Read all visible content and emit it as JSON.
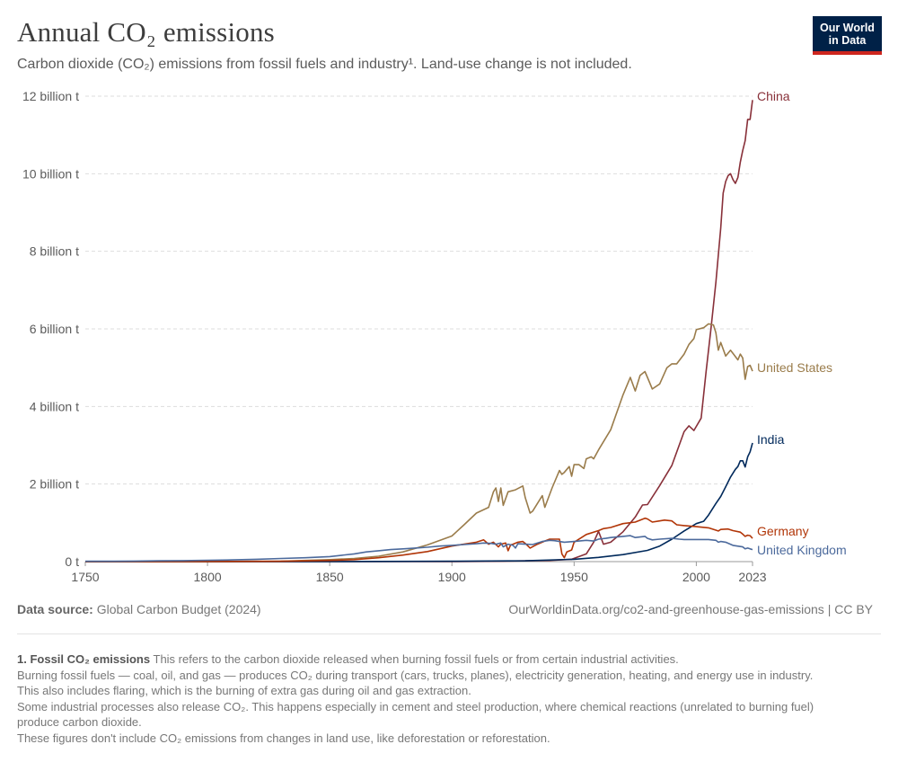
{
  "header": {
    "title": "Annual CO₂ emissions",
    "subtitle": "Carbon dioxide (CO₂) emissions from fossil fuels and industry¹. Land-use change is not included."
  },
  "logo": {
    "line1": "Our World",
    "line2": "in Data",
    "bg_color": "#002147",
    "accent_color": "#ce261e"
  },
  "footer": {
    "source_label": "Data source:",
    "source_value": "Global Carbon Budget (2024)",
    "url": "OurWorldinData.org/co2-and-greenhouse-gas-emissions | CC BY"
  },
  "footnote": {
    "heading": "1. Fossil CO₂ emissions",
    "line1": "This refers to the carbon dioxide released when burning fossil fuels or from certain industrial activities.",
    "line2": "Burning fossil fuels — coal, oil, and gas — produces CO₂ during transport (cars, trucks, planes), electricity generation, heating, and energy use in industry. This also includes flaring, which is the burning of extra gas during oil and gas extraction.",
    "line3": "Some industrial processes also release CO₂. This happens especially in cement and steel production, where chemical reactions (unrelated to burning fuel) produce carbon dioxide.",
    "line4": "These figures don't include CO₂ emissions from changes in land use, like deforestation or reforestation."
  },
  "chart_data": {
    "type": "line",
    "title": "Annual CO₂ emissions",
    "xlabel": "",
    "ylabel": "",
    "xlim": [
      1750,
      2023
    ],
    "ylim": [
      0,
      12
    ],
    "grid": "horizontal dashed",
    "legend": "inline labels at line ends (right)",
    "x_ticks": [
      "1750",
      "1800",
      "1850",
      "1900",
      "1950",
      "2000",
      "2023"
    ],
    "y_ticks": [
      {
        "value": 0,
        "label": "0 t"
      },
      {
        "value": 2,
        "label": "2 billion t"
      },
      {
        "value": 4,
        "label": "4 billion t"
      },
      {
        "value": 6,
        "label": "6 billion t"
      },
      {
        "value": 8,
        "label": "8 billion t"
      },
      {
        "value": 10,
        "label": "10 billion t"
      },
      {
        "value": 12,
        "label": "12 billion t"
      }
    ],
    "series": [
      {
        "name": "China",
        "color": "#883039",
        "points": [
          [
            1750,
            0
          ],
          [
            1900,
            0
          ],
          [
            1920,
            0.01
          ],
          [
            1940,
            0.03
          ],
          [
            1949,
            0.06
          ],
          [
            1955,
            0.2
          ],
          [
            1958,
            0.5
          ],
          [
            1960,
            0.78
          ],
          [
            1962,
            0.45
          ],
          [
            1965,
            0.5
          ],
          [
            1970,
            0.77
          ],
          [
            1975,
            1.15
          ],
          [
            1978,
            1.46
          ],
          [
            1980,
            1.47
          ],
          [
            1985,
            1.96
          ],
          [
            1990,
            2.48
          ],
          [
            1995,
            3.35
          ],
          [
            1997,
            3.5
          ],
          [
            1999,
            3.38
          ],
          [
            2002,
            3.7
          ],
          [
            2004,
            4.9
          ],
          [
            2006,
            6.0
          ],
          [
            2008,
            7.2
          ],
          [
            2010,
            8.6
          ],
          [
            2011,
            9.5
          ],
          [
            2012,
            9.8
          ],
          [
            2013,
            9.95
          ],
          [
            2014,
            10.0
          ],
          [
            2015,
            9.85
          ],
          [
            2016,
            9.75
          ],
          [
            2017,
            9.9
          ],
          [
            2018,
            10.3
          ],
          [
            2019,
            10.6
          ],
          [
            2020,
            10.85
          ],
          [
            2021,
            11.4
          ],
          [
            2022,
            11.4
          ],
          [
            2023,
            11.9
          ]
        ]
      },
      {
        "name": "United States",
        "color": "#9a7c4b",
        "points": [
          [
            1750,
            0
          ],
          [
            1800,
            0.002
          ],
          [
            1830,
            0.01
          ],
          [
            1850,
            0.05
          ],
          [
            1860,
            0.08
          ],
          [
            1870,
            0.14
          ],
          [
            1880,
            0.25
          ],
          [
            1890,
            0.43
          ],
          [
            1900,
            0.66
          ],
          [
            1905,
            0.95
          ],
          [
            1910,
            1.25
          ],
          [
            1915,
            1.4
          ],
          [
            1917,
            1.8
          ],
          [
            1918,
            1.9
          ],
          [
            1919,
            1.55
          ],
          [
            1920,
            1.9
          ],
          [
            1921,
            1.45
          ],
          [
            1923,
            1.8
          ],
          [
            1926,
            1.85
          ],
          [
            1929,
            1.95
          ],
          [
            1930,
            1.65
          ],
          [
            1932,
            1.25
          ],
          [
            1933,
            1.3
          ],
          [
            1937,
            1.7
          ],
          [
            1938,
            1.4
          ],
          [
            1941,
            1.9
          ],
          [
            1944,
            2.35
          ],
          [
            1945,
            2.25
          ],
          [
            1946,
            2.3
          ],
          [
            1948,
            2.45
          ],
          [
            1949,
            2.2
          ],
          [
            1950,
            2.5
          ],
          [
            1952,
            2.5
          ],
          [
            1954,
            2.4
          ],
          [
            1955,
            2.65
          ],
          [
            1957,
            2.7
          ],
          [
            1958,
            2.65
          ],
          [
            1960,
            2.88
          ],
          [
            1965,
            3.4
          ],
          [
            1970,
            4.3
          ],
          [
            1972,
            4.6
          ],
          [
            1973,
            4.75
          ],
          [
            1975,
            4.4
          ],
          [
            1977,
            4.8
          ],
          [
            1979,
            4.9
          ],
          [
            1980,
            4.75
          ],
          [
            1982,
            4.45
          ],
          [
            1985,
            4.58
          ],
          [
            1988,
            5.0
          ],
          [
            1990,
            5.1
          ],
          [
            1992,
            5.1
          ],
          [
            1995,
            5.35
          ],
          [
            1997,
            5.6
          ],
          [
            1999,
            5.75
          ],
          [
            2000,
            5.98
          ],
          [
            2003,
            6.03
          ],
          [
            2005,
            6.13
          ],
          [
            2007,
            6.1
          ],
          [
            2008,
            5.9
          ],
          [
            2009,
            5.45
          ],
          [
            2010,
            5.65
          ],
          [
            2012,
            5.3
          ],
          [
            2014,
            5.45
          ],
          [
            2015,
            5.37
          ],
          [
            2017,
            5.2
          ],
          [
            2018,
            5.35
          ],
          [
            2019,
            5.25
          ],
          [
            2020,
            4.7
          ],
          [
            2021,
            5.03
          ],
          [
            2022,
            5.06
          ],
          [
            2023,
            4.91
          ]
        ]
      },
      {
        "name": "India",
        "color": "#00295b",
        "points": [
          [
            1750,
            0
          ],
          [
            1850,
            0
          ],
          [
            1900,
            0.01
          ],
          [
            1930,
            0.02
          ],
          [
            1950,
            0.06
          ],
          [
            1960,
            0.11
          ],
          [
            1970,
            0.18
          ],
          [
            1980,
            0.29
          ],
          [
            1985,
            0.4
          ],
          [
            1990,
            0.58
          ],
          [
            1995,
            0.79
          ],
          [
            2000,
            0.98
          ],
          [
            2003,
            1.04
          ],
          [
            2005,
            1.2
          ],
          [
            2008,
            1.5
          ],
          [
            2010,
            1.68
          ],
          [
            2012,
            1.93
          ],
          [
            2014,
            2.18
          ],
          [
            2016,
            2.38
          ],
          [
            2017,
            2.45
          ],
          [
            2018,
            2.6
          ],
          [
            2019,
            2.6
          ],
          [
            2020,
            2.44
          ],
          [
            2021,
            2.7
          ],
          [
            2022,
            2.83
          ],
          [
            2023,
            3.06
          ]
        ]
      },
      {
        "name": "Germany",
        "color": "#b13507",
        "points": [
          [
            1750,
            0
          ],
          [
            1800,
            0.002
          ],
          [
            1830,
            0.01
          ],
          [
            1850,
            0.03
          ],
          [
            1860,
            0.05
          ],
          [
            1870,
            0.1
          ],
          [
            1880,
            0.17
          ],
          [
            1890,
            0.26
          ],
          [
            1900,
            0.4
          ],
          [
            1905,
            0.45
          ],
          [
            1910,
            0.5
          ],
          [
            1913,
            0.56
          ],
          [
            1915,
            0.45
          ],
          [
            1917,
            0.5
          ],
          [
            1919,
            0.38
          ],
          [
            1920,
            0.45
          ],
          [
            1922,
            0.48
          ],
          [
            1923,
            0.28
          ],
          [
            1924,
            0.43
          ],
          [
            1925,
            0.45
          ],
          [
            1927,
            0.5
          ],
          [
            1929,
            0.52
          ],
          [
            1930,
            0.47
          ],
          [
            1932,
            0.35
          ],
          [
            1935,
            0.45
          ],
          [
            1938,
            0.53
          ],
          [
            1940,
            0.58
          ],
          [
            1944,
            0.58
          ],
          [
            1945,
            0.2
          ],
          [
            1946,
            0.1
          ],
          [
            1947,
            0.25
          ],
          [
            1949,
            0.3
          ],
          [
            1950,
            0.5
          ],
          [
            1955,
            0.7
          ],
          [
            1960,
            0.8
          ],
          [
            1962,
            0.85
          ],
          [
            1965,
            0.88
          ],
          [
            1970,
            0.98
          ],
          [
            1975,
            1.02
          ],
          [
            1979,
            1.12
          ],
          [
            1980,
            1.1
          ],
          [
            1982,
            1.02
          ],
          [
            1985,
            1.05
          ],
          [
            1987,
            1.07
          ],
          [
            1990,
            1.05
          ],
          [
            1992,
            0.95
          ],
          [
            1995,
            0.93
          ],
          [
            2000,
            0.9
          ],
          [
            2005,
            0.87
          ],
          [
            2009,
            0.79
          ],
          [
            2010,
            0.83
          ],
          [
            2013,
            0.84
          ],
          [
            2015,
            0.8
          ],
          [
            2018,
            0.76
          ],
          [
            2019,
            0.71
          ],
          [
            2020,
            0.65
          ],
          [
            2021,
            0.68
          ],
          [
            2022,
            0.67
          ],
          [
            2023,
            0.6
          ]
        ]
      },
      {
        "name": "United Kingdom",
        "color": "#4c6a9c",
        "points": [
          [
            1750,
            0.01
          ],
          [
            1760,
            0.01
          ],
          [
            1770,
            0.015
          ],
          [
            1780,
            0.02
          ],
          [
            1790,
            0.025
          ],
          [
            1800,
            0.035
          ],
          [
            1810,
            0.045
          ],
          [
            1820,
            0.06
          ],
          [
            1830,
            0.08
          ],
          [
            1840,
            0.1
          ],
          [
            1850,
            0.13
          ],
          [
            1860,
            0.2
          ],
          [
            1865,
            0.25
          ],
          [
            1870,
            0.28
          ],
          [
            1875,
            0.31
          ],
          [
            1880,
            0.33
          ],
          [
            1885,
            0.35
          ],
          [
            1890,
            0.37
          ],
          [
            1895,
            0.4
          ],
          [
            1900,
            0.42
          ],
          [
            1905,
            0.44
          ],
          [
            1910,
            0.46
          ],
          [
            1913,
            0.48
          ],
          [
            1916,
            0.47
          ],
          [
            1918,
            0.45
          ],
          [
            1920,
            0.48
          ],
          [
            1921,
            0.38
          ],
          [
            1923,
            0.45
          ],
          [
            1925,
            0.42
          ],
          [
            1926,
            0.35
          ],
          [
            1927,
            0.46
          ],
          [
            1930,
            0.45
          ],
          [
            1933,
            0.44
          ],
          [
            1937,
            0.52
          ],
          [
            1940,
            0.55
          ],
          [
            1942,
            0.54
          ],
          [
            1944,
            0.52
          ],
          [
            1946,
            0.5
          ],
          [
            1950,
            0.52
          ],
          [
            1955,
            0.55
          ],
          [
            1958,
            0.53
          ],
          [
            1960,
            0.58
          ],
          [
            1963,
            0.6
          ],
          [
            1965,
            0.62
          ],
          [
            1970,
            0.65
          ],
          [
            1973,
            0.67
          ],
          [
            1975,
            0.62
          ],
          [
            1979,
            0.65
          ],
          [
            1980,
            0.6
          ],
          [
            1982,
            0.56
          ],
          [
            1985,
            0.58
          ],
          [
            1990,
            0.6
          ],
          [
            1993,
            0.58
          ],
          [
            1995,
            0.57
          ],
          [
            2000,
            0.57
          ],
          [
            2005,
            0.57
          ],
          [
            2008,
            0.55
          ],
          [
            2009,
            0.5
          ],
          [
            2010,
            0.52
          ],
          [
            2012,
            0.5
          ],
          [
            2015,
            0.42
          ],
          [
            2018,
            0.39
          ],
          [
            2019,
            0.38
          ],
          [
            2020,
            0.33
          ],
          [
            2021,
            0.35
          ],
          [
            2022,
            0.33
          ],
          [
            2023,
            0.31
          ]
        ]
      }
    ]
  }
}
